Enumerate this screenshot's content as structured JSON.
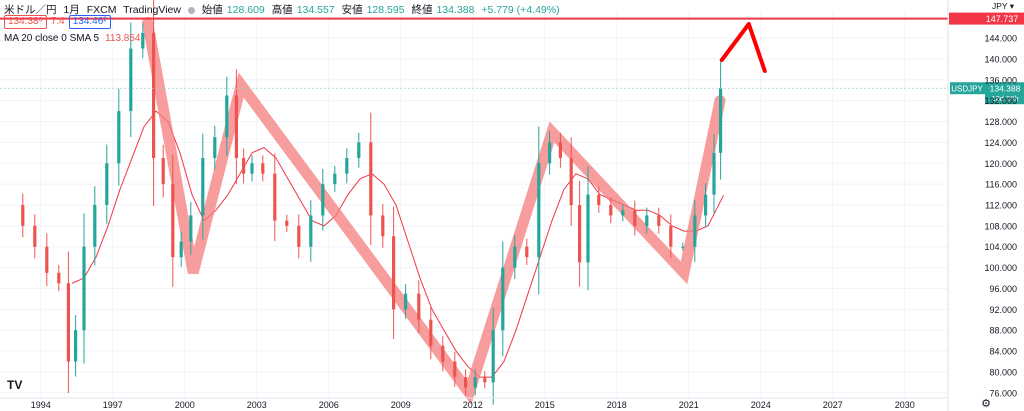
{
  "header": {
    "symbol": "米ドル／円",
    "interval": "1月",
    "broker": "FXCM",
    "source": "TradingView",
    "open_label": "始値",
    "open": "128.609",
    "high_label": "高値",
    "high": "134.557",
    "low_label": "安値",
    "low": "128.595",
    "close_label": "終値",
    "close": "134.388",
    "change": "+5.779 (+4.49%)"
  },
  "trade": {
    "sell": "134.38⁸",
    "spread": "7.4",
    "buy": "134.46²"
  },
  "indicator": {
    "label": "MA 20 close 0 SMA 5",
    "value": "113.854"
  },
  "price_axis": {
    "currency": "JPY",
    "ticks": [
      76,
      80,
      84,
      88,
      92,
      96,
      100,
      104,
      108,
      112,
      116,
      120,
      124,
      128,
      132,
      136,
      140,
      144
    ],
    "tick_labels": [
      "76.000",
      "80.000",
      "84.000",
      "88.000",
      "92.000",
      "96.000",
      "100.000",
      "104.000",
      "108.000",
      "112.000",
      "116.000",
      "120.000",
      "124.000",
      "128.000",
      "132.000",
      "136.000",
      "140.000",
      "144.000"
    ],
    "range": [
      75,
      149
    ]
  },
  "time_axis": {
    "labels": [
      "1994",
      "1997",
      "2000",
      "2003",
      "2006",
      "2009",
      "2012",
      "2015",
      "2018",
      "2021",
      "2024",
      "2027",
      "2030"
    ],
    "range": [
      1992.3,
      2031.8
    ]
  },
  "badges": {
    "target_price": "147.737",
    "symbol_tag": "USDJPY",
    "last_price": "134.388",
    "countdown": "18d 20h"
  },
  "colors": {
    "up": "#26a69a",
    "down": "#ef5350",
    "ma": "#f23645",
    "zigzag": "#f47c7c",
    "target_line": "#f23645",
    "arrow": "#ff0000",
    "grid": "#f0f3fa"
  },
  "chart_data": {
    "type": "candlestick",
    "title": "米ドル／円 1月 FXCM",
    "xlabel": "",
    "ylabel": "",
    "xlim": [
      1992.3,
      2031.8
    ],
    "ylim": [
      75,
      149
    ],
    "grid": true,
    "price_series": {
      "name": "USDJPY",
      "x": [
        1993.0,
        1993.5,
        1994.0,
        1994.5,
        1995.0,
        1995.3,
        1995.6,
        1996.0,
        1996.5,
        1997.0,
        1997.5,
        1998.0,
        1998.5,
        1998.9,
        1999.3,
        1999.7,
        2000.0,
        2000.5,
        2001.0,
        2001.5,
        2002.0,
        2002.3,
        2002.6,
        2003.0,
        2003.5,
        2004.0,
        2004.5,
        2005.0,
        2005.5,
        2006.0,
        2006.5,
        2007.0,
        2007.5,
        2008.0,
        2008.5,
        2008.9,
        2009.5,
        2010.0,
        2010.5,
        2011.0,
        2011.5,
        2011.9,
        2012.3,
        2012.7,
        2013.0,
        2013.5,
        2014.0,
        2014.5,
        2015.0,
        2015.4,
        2015.9,
        2016.3,
        2016.6,
        2017.0,
        2017.5,
        2018.0,
        2018.5,
        2019.0,
        2019.5,
        2020.0,
        2020.5,
        2021.0,
        2021.5,
        2021.9,
        2022.2,
        2022.45
      ],
      "values": [
        112,
        108,
        104,
        99,
        97,
        82,
        88,
        104,
        112,
        120,
        130,
        142,
        145,
        121,
        116,
        102,
        105,
        110,
        121,
        125,
        133,
        121,
        118,
        120,
        118,
        109,
        108,
        104,
        110,
        116,
        118,
        121,
        124,
        110,
        106,
        92,
        95,
        90,
        85,
        82,
        79,
        77,
        79,
        78,
        88,
        100,
        104,
        102,
        120,
        124,
        121,
        112,
        101,
        114,
        112,
        110,
        111,
        108,
        110,
        108,
        104,
        104,
        110,
        114,
        122,
        134.4
      ]
    },
    "ma_series": {
      "name": "MA 20 close 0 SMA 5",
      "x": [
        1995.3,
        1995.8,
        1996.3,
        1996.8,
        1997.3,
        1997.8,
        1998.3,
        1998.8,
        1999.3,
        1999.8,
        2000.3,
        2000.8,
        2001.3,
        2001.8,
        2002.3,
        2002.8,
        2003.3,
        2003.8,
        2004.3,
        2004.8,
        2005.3,
        2005.8,
        2006.3,
        2006.8,
        2007.3,
        2007.8,
        2008.3,
        2008.8,
        2009.3,
        2009.8,
        2010.3,
        2010.8,
        2011.3,
        2011.8,
        2012.3,
        2012.8,
        2013.3,
        2013.8,
        2014.3,
        2014.8,
        2015.3,
        2015.8,
        2016.3,
        2016.8,
        2017.3,
        2017.8,
        2018.3,
        2018.8,
        2019.3,
        2019.8,
        2020.3,
        2020.8,
        2021.3,
        2021.8,
        2022.45
      ],
      "values": [
        97,
        98,
        102,
        108,
        115,
        121,
        127,
        130,
        128,
        122,
        114,
        109,
        111,
        114,
        118,
        122,
        123,
        121,
        117,
        113,
        109,
        108,
        110,
        114,
        117,
        118,
        116,
        112,
        105,
        98,
        92,
        88,
        84,
        81,
        79,
        79,
        82,
        88,
        95,
        102,
        109,
        115,
        118,
        117,
        114,
        113,
        112,
        111,
        111,
        110,
        108,
        107,
        107,
        108,
        113.854
      ]
    },
    "zigzag": {
      "x": [
        1998.45,
        2000.35,
        2002.35,
        2011.85,
        2015.3,
        2020.8,
        2022.3
      ],
      "values": [
        147,
        99,
        135,
        76,
        126,
        99,
        132
      ]
    },
    "target_line": 147.737,
    "last_price": 134.388
  }
}
